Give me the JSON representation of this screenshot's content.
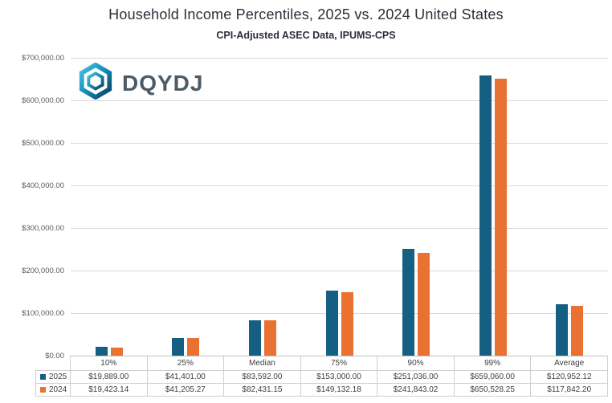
{
  "title": "Household Income Percentiles, 2025 vs. 2024 United States",
  "subtitle": "CPI-Adjusted ASEC Data, IPUMS-CPS",
  "logo": {
    "text": "DQYDJ"
  },
  "colors": {
    "series_2025": "#156082",
    "series_2024": "#E97132",
    "gridline": "#d9d9d9",
    "axis_text": "#595959"
  },
  "chart_data": {
    "type": "bar",
    "title": "Household Income Percentiles, 2025 vs. 2024 United States",
    "subtitle": "CPI-Adjusted ASEC Data, IPUMS-CPS",
    "categories": [
      "10%",
      "25%",
      "Median",
      "75%",
      "90%",
      "99%",
      "Average"
    ],
    "series": [
      {
        "name": "2025",
        "color": "#156082",
        "values": [
          19889.0,
          41401.0,
          83592.0,
          153000.0,
          251036.0,
          659060.0,
          120952.12
        ],
        "labels": [
          "$19,889.00",
          "$41,401.00",
          "$83,592.00",
          "$153,000.00",
          "$251,036.00",
          "$659,060.00",
          "$120,952.12"
        ]
      },
      {
        "name": "2024",
        "color": "#E97132",
        "values": [
          19423.14,
          41205.27,
          82431.15,
          149132.18,
          241843.02,
          650528.25,
          117842.2
        ],
        "labels": [
          "$19,423.14",
          "$41,205.27",
          "$82,431.15",
          "$149,132.18",
          "$241,843.02",
          "$650,528.25",
          "$117,842.20"
        ]
      }
    ],
    "ylim": [
      0,
      700000
    ],
    "y_ticks": [
      "$700,000.00",
      "$600,000.00",
      "$500,000.00",
      "$400,000.00",
      "$300,000.00",
      "$200,000.00",
      "$100,000.00",
      "$0.00"
    ],
    "grid": true,
    "legend_position": "data-table",
    "xlabel": "",
    "ylabel": ""
  }
}
